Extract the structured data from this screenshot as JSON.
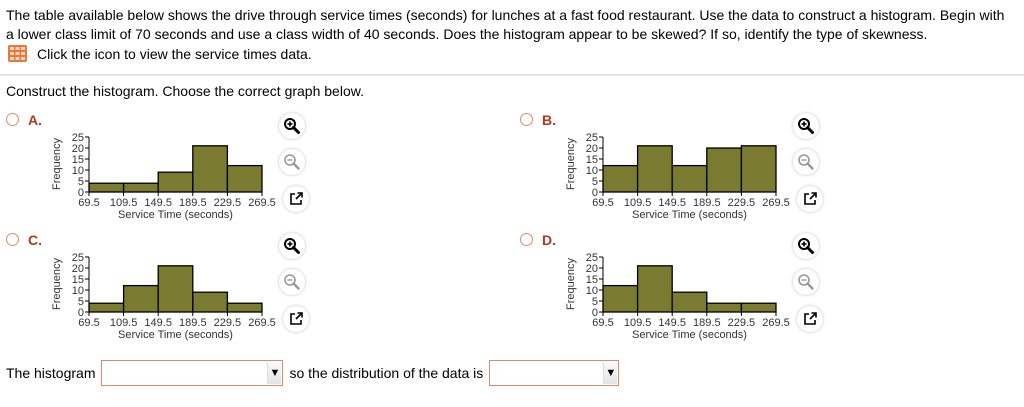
{
  "question": {
    "text": "The table available below shows the drive through service times (seconds) for lunches at a fast food restaurant. Use the data to construct a histogram. Begin with a lower class limit of 70 seconds and use a class width of 40 seconds. Does the histogram appear to be skewed? If so, identify the type of skewness.",
    "data_link": "Click the icon to view the service times data.",
    "data_icon": "table-icon"
  },
  "instruction": "Construct the histogram. Choose the correct graph below.",
  "colors": {
    "bar_fill": "#7a7a30",
    "bar_stroke": "#000000",
    "radio_border": "#d98b70",
    "option_label": "#b0391e",
    "dropdown_border": "#d98b70"
  },
  "options": [
    {
      "label": "A.",
      "selected": false
    },
    {
      "label": "B.",
      "selected": false
    },
    {
      "label": "C.",
      "selected": false
    },
    {
      "label": "D.",
      "selected": false
    }
  ],
  "tools": {
    "zoom_in": "zoom-in-icon",
    "zoom_out": "zoom-out-icon",
    "popout": "external-link-icon"
  },
  "chart_data": [
    {
      "type": "bar",
      "option": "A",
      "categories": [
        "69.5-109.5",
        "109.5-149.5",
        "149.5-189.5",
        "189.5-229.5",
        "229.5-269.5"
      ],
      "x_ticks": [
        "69.5",
        "109.5",
        "149.5",
        "189.5",
        "229.5",
        "269.5"
      ],
      "values": [
        4,
        4,
        9,
        21,
        12
      ],
      "xlabel": "Service Time (seconds)",
      "ylabel": "Frequency",
      "y_ticks": [
        "0",
        "5",
        "10",
        "15",
        "20",
        "25"
      ],
      "ylim": [
        0,
        25
      ]
    },
    {
      "type": "bar",
      "option": "B",
      "categories": [
        "69.5-109.5",
        "109.5-149.5",
        "149.5-189.5",
        "189.5-229.5",
        "229.5-269.5"
      ],
      "x_ticks": [
        "69.5",
        "109.5",
        "149.5",
        "189.5",
        "229.5",
        "269.5"
      ],
      "values": [
        12,
        21,
        12,
        20,
        21
      ],
      "xlabel": "Service Time (seconds)",
      "ylabel": "Frequency",
      "y_ticks": [
        "0",
        "5",
        "10",
        "15",
        "20",
        "25"
      ],
      "ylim": [
        0,
        25
      ]
    },
    {
      "type": "bar",
      "option": "C",
      "categories": [
        "69.5-109.5",
        "109.5-149.5",
        "149.5-189.5",
        "189.5-229.5",
        "229.5-269.5"
      ],
      "x_ticks": [
        "69.5",
        "109.5",
        "149.5",
        "189.5",
        "229.5",
        "269.5"
      ],
      "values": [
        4,
        12,
        21,
        9,
        4
      ],
      "xlabel": "Service Time (seconds)",
      "ylabel": "Frequency",
      "y_ticks": [
        "0",
        "5",
        "10",
        "15",
        "20",
        "25"
      ],
      "ylim": [
        0,
        25
      ]
    },
    {
      "type": "bar",
      "option": "D",
      "categories": [
        "69.5-109.5",
        "109.5-149.5",
        "149.5-189.5",
        "189.5-229.5",
        "229.5-269.5"
      ],
      "x_ticks": [
        "69.5",
        "109.5",
        "149.5",
        "189.5",
        "229.5",
        "269.5"
      ],
      "values": [
        12,
        21,
        9,
        4,
        4
      ],
      "xlabel": "Service Time (seconds)",
      "ylabel": "Frequency",
      "y_ticks": [
        "0",
        "5",
        "10",
        "15",
        "20",
        "25"
      ],
      "ylim": [
        0,
        25
      ]
    }
  ],
  "answer": {
    "prefix": "The histogram",
    "middle": "so the distribution of the data is",
    "dropdown1_value": "",
    "dropdown2_value": "",
    "arrow": "▼"
  }
}
